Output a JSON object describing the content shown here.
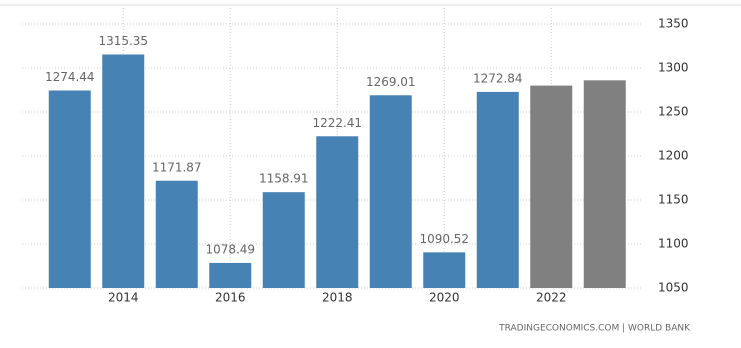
{
  "chart_data": {
    "type": "bar",
    "categories": [
      null,
      "2014",
      null,
      "2016",
      null,
      "2018",
      null,
      "2020",
      null,
      "2022",
      null
    ],
    "values": [
      1274.44,
      1315.35,
      1171.87,
      1078.49,
      1158.91,
      1222.41,
      1269.01,
      1090.52,
      1272.84,
      1280,
      1286
    ],
    "colors": [
      "#4682b4",
      "#4682b4",
      "#4682b4",
      "#4682b4",
      "#4682b4",
      "#4682b4",
      "#4682b4",
      "#4682b4",
      "#4682b4",
      "#808080",
      "#808080"
    ],
    "value_labels": [
      "1274.44",
      "1315.35",
      "1171.87",
      "1078.49",
      "1158.91",
      "1222.41",
      "1269.01",
      "1090.52",
      "1272.84",
      null,
      null
    ],
    "ylim": [
      1050,
      1350
    ],
    "yticks": [
      1050,
      1100,
      1150,
      1200,
      1250,
      1300,
      1350
    ],
    "grid": true,
    "source": "TRADINGECONOMICS.COM | WORLD BANK"
  }
}
